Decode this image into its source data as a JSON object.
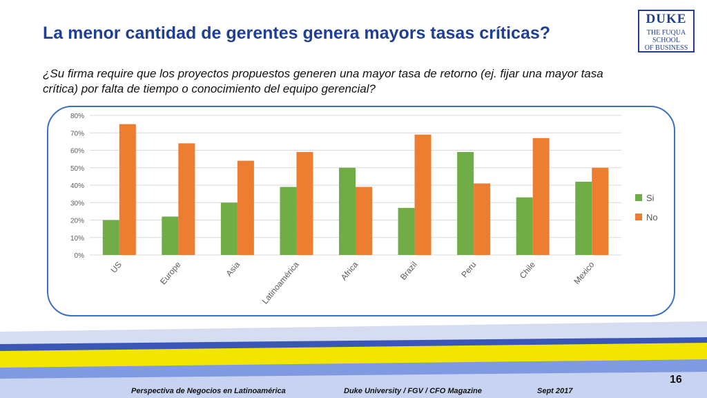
{
  "slide": {
    "title": "La menor cantidad de gerentes genera mayors tasas críticas?",
    "question": "¿Su firma require que los proyectos propuestos generen una mayor tasa de retorno (ej. fijar una mayor tasa crítica) por falta de tiempo o conocimiento del equipo gerencial?",
    "logo_line1": "DUKE",
    "logo_line2": "THE FUQUA",
    "logo_line3": "SCHOOL",
    "logo_line4": "OF BUSINESS",
    "page_number": "16"
  },
  "footer": {
    "left": "Perspectiva de Negocios en Latinoamérica",
    "middle": "Duke University / FGV / CFO Magazine",
    "right": "Sept 2017"
  },
  "colors": {
    "title": "#1f3f95",
    "si": "#70ad47",
    "no": "#ed7d31",
    "frame": "#3b6fc4"
  },
  "chart_data": {
    "type": "bar",
    "categories": [
      "US",
      "Europe",
      "Asia",
      "Latinoamérica",
      "Africa",
      "Brazil",
      "Peru",
      "Chile",
      "Mexico"
    ],
    "series": [
      {
        "name": "Si",
        "color": "#70ad47",
        "values": [
          20,
          22,
          30,
          39,
          50,
          27,
          59,
          33,
          42
        ]
      },
      {
        "name": "No",
        "color": "#ed7d31",
        "values": [
          75,
          64,
          54,
          59,
          39,
          69,
          41,
          67,
          50
        ]
      }
    ],
    "y_ticks": [
      "0%",
      "10%",
      "20%",
      "30%",
      "40%",
      "50%",
      "60%",
      "70%",
      "80%"
    ],
    "ylim": [
      0,
      80
    ],
    "grid": true,
    "legend": "right",
    "title": "",
    "xlabel": "",
    "ylabel": ""
  }
}
